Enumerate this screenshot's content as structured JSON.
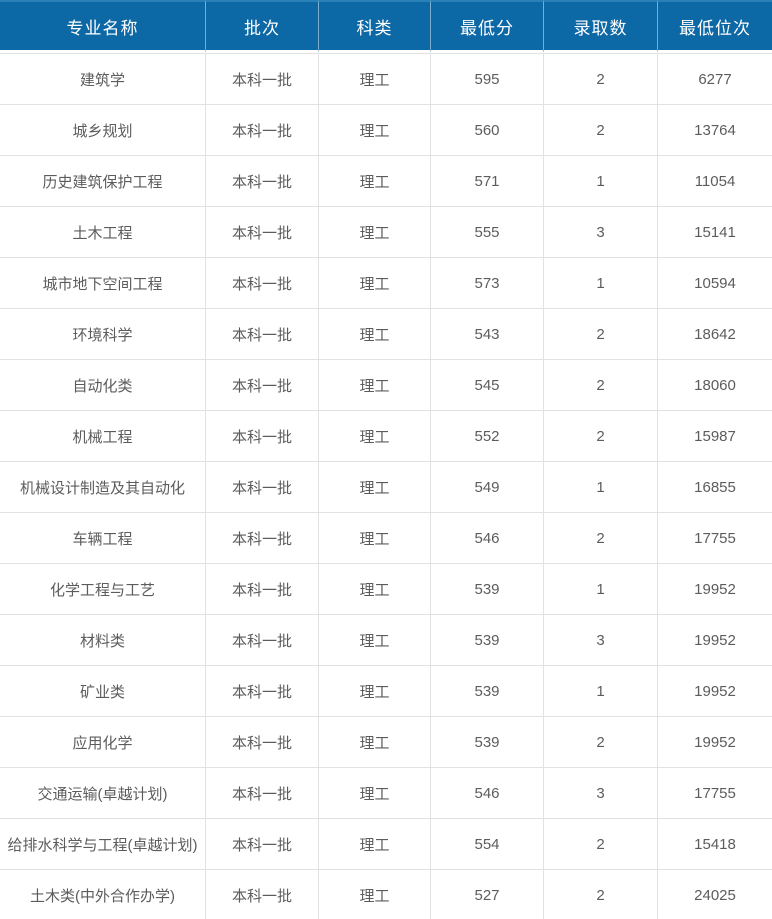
{
  "colors": {
    "header_bg": "#0d68a6",
    "header_text": "#ffffff",
    "header_divider": "#5f9cc6",
    "cell_text": "#5c5c5c",
    "row_border": "#e2e2e2"
  },
  "table": {
    "columns": [
      "专业名称",
      "批次",
      "科类",
      "最低分",
      "录取数",
      "最低位次"
    ],
    "rows": [
      {
        "major": "建筑学",
        "batch": "本科一批",
        "category": "理工",
        "min_score": "595",
        "admitted": "2",
        "min_rank": "6277"
      },
      {
        "major": "城乡规划",
        "batch": "本科一批",
        "category": "理工",
        "min_score": "560",
        "admitted": "2",
        "min_rank": "13764"
      },
      {
        "major": "历史建筑保护工程",
        "batch": "本科一批",
        "category": "理工",
        "min_score": "571",
        "admitted": "1",
        "min_rank": "11054"
      },
      {
        "major": "土木工程",
        "batch": "本科一批",
        "category": "理工",
        "min_score": "555",
        "admitted": "3",
        "min_rank": "15141"
      },
      {
        "major": "城市地下空间工程",
        "batch": "本科一批",
        "category": "理工",
        "min_score": "573",
        "admitted": "1",
        "min_rank": "10594"
      },
      {
        "major": "环境科学",
        "batch": "本科一批",
        "category": "理工",
        "min_score": "543",
        "admitted": "2",
        "min_rank": "18642"
      },
      {
        "major": "自动化类",
        "batch": "本科一批",
        "category": "理工",
        "min_score": "545",
        "admitted": "2",
        "min_rank": "18060"
      },
      {
        "major": "机械工程",
        "batch": "本科一批",
        "category": "理工",
        "min_score": "552",
        "admitted": "2",
        "min_rank": "15987"
      },
      {
        "major": "机械设计制造及其自动化",
        "batch": "本科一批",
        "category": "理工",
        "min_score": "549",
        "admitted": "1",
        "min_rank": "16855"
      },
      {
        "major": "车辆工程",
        "batch": "本科一批",
        "category": "理工",
        "min_score": "546",
        "admitted": "2",
        "min_rank": "17755"
      },
      {
        "major": "化学工程与工艺",
        "batch": "本科一批",
        "category": "理工",
        "min_score": "539",
        "admitted": "1",
        "min_rank": "19952"
      },
      {
        "major": "材料类",
        "batch": "本科一批",
        "category": "理工",
        "min_score": "539",
        "admitted": "3",
        "min_rank": "19952"
      },
      {
        "major": "矿业类",
        "batch": "本科一批",
        "category": "理工",
        "min_score": "539",
        "admitted": "1",
        "min_rank": "19952"
      },
      {
        "major": "应用化学",
        "batch": "本科一批",
        "category": "理工",
        "min_score": "539",
        "admitted": "2",
        "min_rank": "19952"
      },
      {
        "major": "交通运输(卓越计划)",
        "batch": "本科一批",
        "category": "理工",
        "min_score": "546",
        "admitted": "3",
        "min_rank": "17755"
      },
      {
        "major": "给排水科学与工程(卓越计划)",
        "batch": "本科一批",
        "category": "理工",
        "min_score": "554",
        "admitted": "2",
        "min_rank": "15418"
      },
      {
        "major": "土木类(中外合作办学)",
        "batch": "本科一批",
        "category": "理工",
        "min_score": "527",
        "admitted": "2",
        "min_rank": "24025"
      }
    ]
  }
}
